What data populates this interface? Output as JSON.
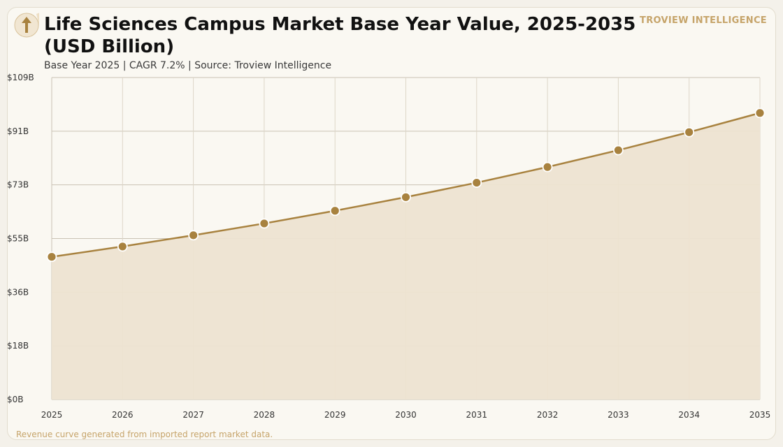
{
  "header": {
    "title": "Life Sciences Campus Market Base Year Value, 2025-2035 (USD Billion)",
    "subtitle": "Base Year 2025 | CAGR 7.2% | Source: Troview Intelligence",
    "brand": "TROVIEW INTELLIGENCE",
    "logo_icon": "rising-arrow-icon"
  },
  "footnote": "Revenue curve generated from imported report market data.",
  "colors": {
    "accent": "#a8823f",
    "area_fill": "#ede3d1",
    "grid": "#c9c2b4",
    "background": "#faf8f2"
  },
  "chart_data": {
    "type": "area",
    "title": "Life Sciences Campus Market Base Year Value, 2025-2035 (USD Billion)",
    "x": [
      2025,
      2026,
      2027,
      2028,
      2029,
      2030,
      2031,
      2032,
      2033,
      2034,
      2035
    ],
    "series": [
      {
        "values": [
          48.3,
          51.8,
          55.6,
          59.6,
          63.9,
          68.5,
          73.4,
          78.7,
          84.4,
          90.5,
          97.0
        ]
      }
    ],
    "y_ticks": [
      "$0B",
      "$18B",
      "$36B",
      "$55B",
      "$73B",
      "$91B",
      "$109B"
    ],
    "x_ticks": [
      "2025",
      "2026",
      "2027",
      "2028",
      "2029",
      "2030",
      "2031",
      "2032",
      "2033",
      "2034",
      "2035"
    ],
    "ylim": [
      0,
      109
    ],
    "xlim": [
      2025,
      2035
    ],
    "grid": true,
    "markers": true
  }
}
